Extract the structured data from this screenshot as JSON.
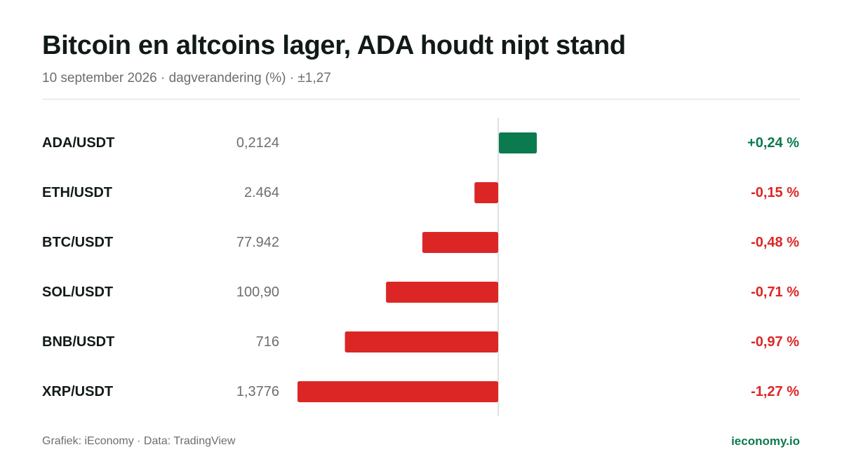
{
  "colors": {
    "positive": "#0b7a4e",
    "negative": "#dc2626",
    "brand": "#0b7a4e"
  },
  "header": {
    "title": "Bitcoin en altcoins lager, ADA houdt nipt stand",
    "subtitle": "10 september 2026 · dagverandering (%) · ±1,27"
  },
  "footer": {
    "credit": "Grafiek: iEconomy · Data: TradingView",
    "brand": "ieconomy.io"
  },
  "chart_data": {
    "type": "bar",
    "orientation": "horizontal",
    "value_unit": "%",
    "xlim": [
      -1.27,
      1.27
    ],
    "grid": false,
    "categories": [
      "ADA/USDT",
      "ETH/USDT",
      "BTC/USDT",
      "SOL/USDT",
      "BNB/USDT",
      "XRP/USDT"
    ],
    "prices": [
      "0,2124",
      "2.464",
      "77.942",
      "100,90",
      "716",
      "1,3776"
    ],
    "values": [
      0.24,
      -0.15,
      -0.48,
      -0.71,
      -0.97,
      -1.27
    ],
    "value_labels": [
      "+0,24 %",
      "-0,15 %",
      "-0,48 %",
      "-0,71 %",
      "-0,97 %",
      "-1,27 %"
    ]
  }
}
